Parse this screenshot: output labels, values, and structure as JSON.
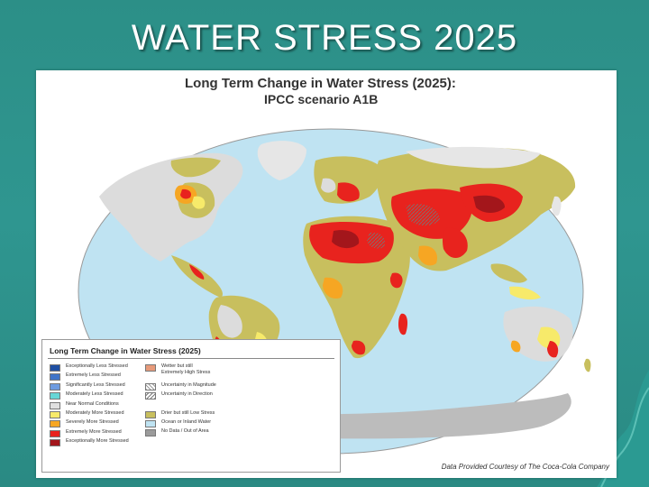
{
  "slide": {
    "title": "WATER STRESS 2025"
  },
  "map": {
    "title": "Long Term Change in Water Stress (2025):",
    "subtitle": "IPCC scenario A1B",
    "credit": "Data Provided Courtesy of The Coca-Cola Company"
  },
  "legend": {
    "title": "Long Term Change in Water Stress (2025)",
    "left_items": [
      {
        "label": "Exceptionally Less Stressed",
        "color": "#1f4fa3"
      },
      {
        "label": "Extremely Less Stressed",
        "color": "#3f74c8"
      },
      {
        "label": "Significantly Less Stressed",
        "color": "#6d9be0"
      },
      {
        "label": "Moderately Less Stressed",
        "color": "#66d6d6"
      },
      {
        "label": "Near Normal Conditions",
        "color": "#e0e0e0"
      },
      {
        "label": "Moderately More Stressed",
        "color": "#f7ea6a"
      },
      {
        "label": "Severely More Stressed",
        "color": "#f6a623"
      },
      {
        "label": "Extremely More Stressed",
        "color": "#e8231e"
      },
      {
        "label": "Exceptionally More Stressed",
        "color": "#a3161b"
      }
    ],
    "right_items": [
      {
        "label": "Wetter but still\nExtremely High Stress",
        "color": "#e79a7a"
      },
      {
        "label": "Uncertainty in Magnitude",
        "color": "#9a9a9a"
      },
      {
        "label": "Uncertainty in Direction",
        "color": "#7a7a7a"
      },
      {
        "label": "Drier but still Low Stress",
        "color": "#c8bf5e"
      },
      {
        "label": "Ocean or Inland Water",
        "color": "#bfe3f2"
      },
      {
        "label": "No Data / Out of Area",
        "color": "#9b9b9b"
      }
    ]
  }
}
